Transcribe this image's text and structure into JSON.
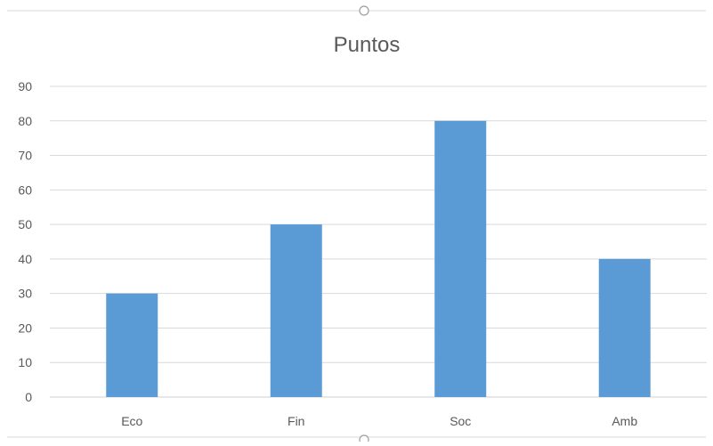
{
  "chart_data": {
    "type": "bar",
    "title": "Puntos",
    "categories": [
      "Eco",
      "Fin",
      "Soc",
      "Amb"
    ],
    "values": [
      30,
      50,
      80,
      40
    ],
    "xlabel": "",
    "ylabel": "",
    "ylim": [
      0,
      90
    ],
    "yticks": [
      0,
      10,
      20,
      30,
      40,
      50,
      60,
      70,
      80,
      90
    ],
    "grid": true,
    "legend": "none",
    "bar_color": "#5b9bd5",
    "grid_color": "#d9d9d9",
    "text_color": "#595959"
  }
}
